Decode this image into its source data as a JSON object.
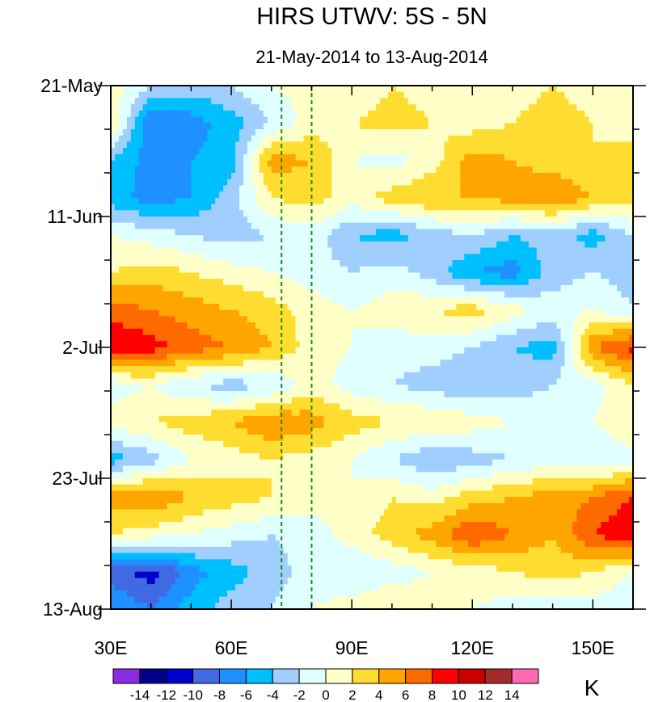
{
  "chart_data": {
    "type": "heatmap",
    "title": "HIRS UTWV: 5S - 5N",
    "subtitle": "21-May-2014 to 13-Aug-2014",
    "xlabel": "",
    "ylabel": "",
    "xlim": [
      30,
      160
    ],
    "ylim_days": [
      0,
      84
    ],
    "x_ticks": [
      {
        "value": 30,
        "label": "30E"
      },
      {
        "value": 60,
        "label": "60E"
      },
      {
        "value": 90,
        "label": "90E"
      },
      {
        "value": 120,
        "label": "120E"
      },
      {
        "value": 150,
        "label": "150E"
      }
    ],
    "y_ticks": [
      {
        "day": 0,
        "label": "21-May"
      },
      {
        "day": 21,
        "label": "11-Jun"
      },
      {
        "day": 42,
        "label": "2-Jul"
      },
      {
        "day": 63,
        "label": "23-Jul"
      },
      {
        "day": 84,
        "label": "13-Aug"
      }
    ],
    "reference_lines_lon": [
      72.5,
      80
    ],
    "colorbar": {
      "unit": "K",
      "labels": [
        "-14",
        "-12",
        "-10",
        "-8",
        "-6",
        "-4",
        "-2",
        "0",
        "2",
        "4",
        "6",
        "8",
        "10",
        "12",
        "14"
      ],
      "colors": [
        "#8a2be2",
        "#00008b",
        "#0000cd",
        "#4169e1",
        "#1e90ff",
        "#00bfff",
        "#a0cfff",
        "#e0ffff",
        "#ffffc8",
        "#ffdd30",
        "#ffa500",
        "#ff6a00",
        "#ff0000",
        "#cd0000",
        "#a52a2a",
        "#ff69b4"
      ]
    },
    "lon_grid": [
      30,
      40,
      50,
      60,
      70,
      80,
      90,
      100,
      110,
      120,
      130,
      140,
      150,
      160
    ],
    "day_grid": [
      0,
      6,
      12,
      18,
      24,
      30,
      36,
      42,
      48,
      54,
      60,
      66,
      72,
      78,
      84
    ],
    "values": [
      [
        1,
        -2,
        -3,
        -2,
        0,
        1,
        0,
        2,
        1,
        0,
        1,
        2,
        1,
        0
      ],
      [
        2,
        -8,
        -7,
        -5,
        -2,
        1,
        2,
        3,
        2,
        1,
        2,
        3,
        2,
        1
      ],
      [
        -4,
        -7,
        -6,
        -5,
        5,
        4,
        0,
        -1,
        1,
        5,
        4,
        3,
        2,
        3
      ],
      [
        -5,
        -7,
        -6,
        -3,
        2,
        3,
        1,
        3,
        4,
        4,
        5,
        6,
        4,
        3
      ],
      [
        0,
        -1,
        -2,
        -3,
        -2,
        -1,
        -4,
        -5,
        -3,
        -2,
        -4,
        -3,
        -5,
        -2
      ],
      [
        2,
        3,
        2,
        1,
        0,
        -1,
        -2,
        -1,
        -3,
        -6,
        -7,
        -3,
        -2,
        -3
      ],
      [
        7,
        6,
        5,
        4,
        3,
        1,
        0,
        1,
        2,
        3,
        1,
        -1,
        0,
        -2
      ],
      [
        10,
        9,
        7,
        6,
        4,
        1,
        0,
        -1,
        -1,
        -2,
        -4,
        -5,
        6,
        9
      ],
      [
        -1,
        0,
        -2,
        -3,
        -2,
        1,
        -1,
        -2,
        -3,
        -4,
        -3,
        -2,
        -1,
        2
      ],
      [
        1,
        2,
        3,
        4,
        6,
        5,
        3,
        2,
        2,
        1,
        0,
        -1,
        0,
        2
      ],
      [
        -5,
        -3,
        0,
        1,
        2,
        1,
        0,
        -2,
        -4,
        -3,
        -2,
        -1,
        -2,
        -1
      ],
      [
        5,
        6,
        4,
        3,
        2,
        1,
        0,
        2,
        1,
        3,
        4,
        5,
        6,
        8
      ],
      [
        2,
        1,
        0,
        -1,
        -2,
        -1,
        1,
        3,
        5,
        8,
        6,
        4,
        8,
        10
      ],
      [
        -9,
        -11,
        -7,
        -5,
        -3,
        -1,
        -2,
        -1,
        0,
        1,
        2,
        3,
        2,
        0
      ],
      [
        -6,
        -8,
        -5,
        -3,
        -2,
        0,
        1,
        2,
        1,
        0,
        -1,
        -2,
        -1,
        -2
      ]
    ]
  }
}
